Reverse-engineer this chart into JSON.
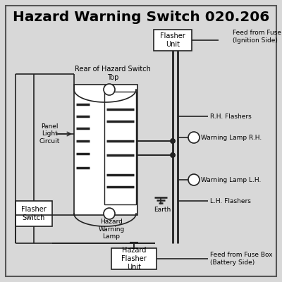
{
  "title": "Hazard Warning Switch 020.206",
  "bg_color": "#d8d8d8",
  "border_color": "#444444",
  "line_color": "#222222",
  "box_color": "#ffffff",
  "labels": {
    "flasher_unit": "Flasher\nUnit",
    "rear_hazard": "Rear of Hazard Switch",
    "top": "Top",
    "panel_light": "Panel\nLight\nCircuit",
    "hazard_warning_lamp": "Hazard\nWarning\nLamp",
    "earth": "Earth",
    "flasher_switch": "Flasher\nSwitch",
    "hazard_flasher_unit": "Hazard\nFlasher\nUnit",
    "rh_flashers": "R.H. Flashers",
    "warning_lamp_rh": "Warning Lamp R.H.",
    "warning_lamp_lh": "Warning Lamp L.H.",
    "lh_flashers": "L.H. Flashers",
    "feed_ignition": "Feed from Fuse Box\n(Ignition Side)",
    "feed_battery": "Feed from Fuse Box\n(Battery Side)"
  }
}
